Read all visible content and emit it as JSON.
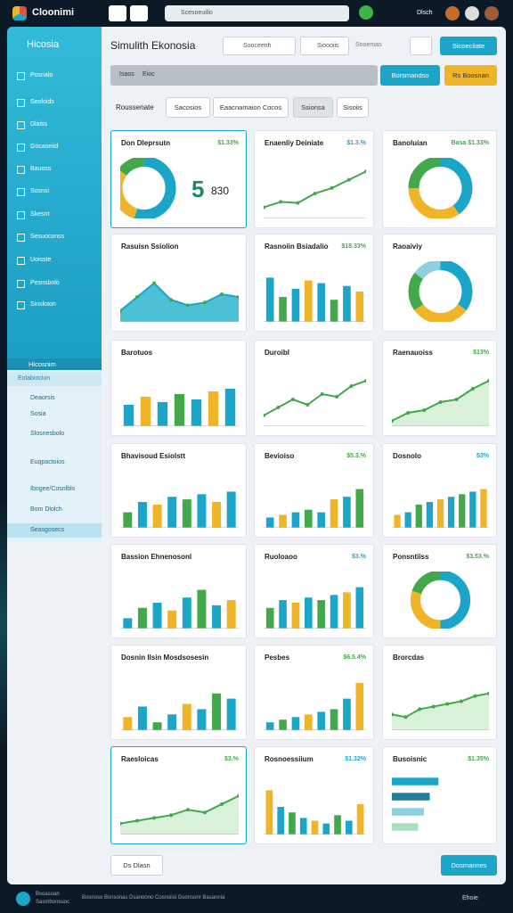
{
  "header": {
    "logo": "Cloonimi",
    "search": "Scesoeuilio",
    "user": "Dlsch"
  },
  "sidebar": {
    "title": "Hicosia",
    "items": [
      "Posnalo",
      "Seoloids",
      "Dlaiss",
      "Gocaseiid",
      "Bauoss",
      "Sosnsi",
      "Skesnt",
      "Sesuoconss",
      "Uoisste",
      "Pesnsbolo",
      "Sinsloton"
    ],
    "section": "Hicosnim",
    "section_sub": "Eolabiocion",
    "lower_items": [
      "Deaorsis",
      "Sosia",
      "Slosnesbolo",
      "Euqpactoios",
      "Ibogee/Cosnlbls",
      "Bom Dlolch",
      "Seasgosecs"
    ]
  },
  "toolbar": {
    "title": "Simulith Ekonosia",
    "search_1": "Sooceenh",
    "search_2": "Sioooiis",
    "search_3": "Sooemas",
    "button": "Sicoeciiate",
    "filter_1": "Isaos",
    "filter_2": "Eioc",
    "button_teal": "Borsmandso",
    "button_yellow": "Rs Boosnan"
  },
  "tabs": {
    "label": "Roussenate",
    "items": [
      "Sacosios",
      "Eaacnamaion Cocos",
      "Ssionsa",
      "Sisoiis"
    ]
  },
  "cards": [
    {
      "title": "Don Dleprsutn",
      "value": "$1.33%",
      "kind": "donut",
      "values": [
        55,
        30,
        15
      ],
      "big": [
        "5",
        "830"
      ]
    },
    {
      "title": "Enaenliy Deiniate",
      "value": "$1.3.%",
      "kind": "line",
      "values": [
        20,
        30,
        28,
        45,
        55,
        70,
        85
      ]
    },
    {
      "title": "Banoluian",
      "value": "Basa $1.33%",
      "kind": "donut",
      "values": [
        40,
        35,
        25
      ]
    },
    {
      "title": "Rasuisn Ssiolion",
      "kind": "area",
      "values": [
        20,
        45,
        70,
        40,
        30,
        35,
        50,
        45
      ]
    },
    {
      "title": "Rasnoiin Bsiadalio",
      "value": "$18.33%",
      "kind": "bar",
      "values": [
        80,
        45,
        60,
        75,
        70,
        40,
        65,
        55
      ]
    },
    {
      "title": "Raoaiviy",
      "kind": "donut",
      "values": [
        35,
        30,
        20,
        15
      ]
    },
    {
      "title": "Barotuos",
      "kind": "bar",
      "values": [
        40,
        55,
        45,
        60,
        50,
        65,
        70
      ]
    },
    {
      "title": "Duroibl",
      "kind": "line",
      "values": [
        20,
        35,
        50,
        40,
        60,
        55,
        75,
        85
      ]
    },
    {
      "title": "Raenauoiss",
      "value": "$13%",
      "kind": "area",
      "values": [
        10,
        25,
        30,
        45,
        50,
        70,
        85
      ]
    },
    {
      "title": "Bhavisoud Esiolstt",
      "kind": "bar",
      "values": [
        30,
        50,
        45,
        60,
        55,
        65,
        50,
        70
      ]
    },
    {
      "title": "Bevioiso",
      "value": "$5.3.%",
      "kind": "bar",
      "values": [
        20,
        25,
        30,
        35,
        30,
        55,
        60,
        75
      ]
    },
    {
      "title": "Dosnolo",
      "value": "$3%",
      "kind": "bar",
      "values": [
        25,
        30,
        45,
        50,
        55,
        60,
        65,
        70,
        75
      ]
    },
    {
      "title": "Bassion Ehnenosonl",
      "kind": "bar",
      "values": [
        20,
        40,
        50,
        35,
        60,
        75,
        45,
        55
      ]
    },
    {
      "title": "Ruoloaoo",
      "value": "$3.%",
      "kind": "bar",
      "values": [
        40,
        55,
        50,
        60,
        55,
        65,
        70,
        80
      ]
    },
    {
      "title": "Ponsntiiss",
      "value": "$3.53.%",
      "kind": "donut",
      "values": [
        50,
        30,
        20
      ]
    },
    {
      "title": "Dosnin Ilsin Mosdsosesin",
      "kind": "bar",
      "values": [
        25,
        45,
        15,
        30,
        50,
        40,
        70,
        60
      ]
    },
    {
      "title": "Pesbes",
      "value": "$6.5.4%",
      "kind": "bar",
      "values": [
        15,
        20,
        25,
        30,
        35,
        40,
        60,
        90
      ]
    },
    {
      "title": "Brorcdas",
      "kind": "area",
      "values": [
        30,
        25,
        40,
        45,
        50,
        55,
        65,
        70
      ]
    },
    {
      "title": "Raesloicas",
      "value": "$3.%",
      "kind": "area",
      "values": [
        20,
        25,
        30,
        35,
        45,
        40,
        55,
        70
      ]
    },
    {
      "title": "Rosnoessiium",
      "value": "$1.32%",
      "kind": "bar",
      "values": [
        80,
        50,
        40,
        30,
        25,
        20,
        35,
        25,
        55
      ]
    },
    {
      "title": "Busoisnic",
      "value": "$1.35%",
      "kind": "hbar",
      "values": [
        80,
        65,
        55,
        45
      ]
    }
  ],
  "bottom": {
    "dropdown": "Ds Dlasn",
    "button": "Dosmannes"
  },
  "footer": {
    "brand": "Bsoasoan",
    "brand_sub": "Sasmbonsuoc",
    "text": "Bosnoso Bsnsonas Dsanoono Cosnsiisi Gsonsonr Basannia",
    "link": "Ehoie"
  }
}
